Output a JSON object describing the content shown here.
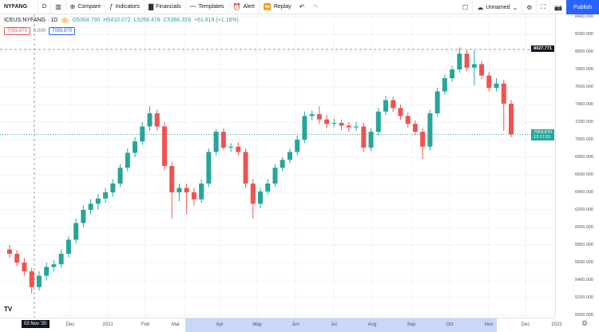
{
  "toolbar": {
    "symbol": "NYFANG",
    "interval": "D",
    "compare": "Compare",
    "indicators": "Indicators",
    "financials": "Financials",
    "templates": "Templates",
    "alert": "Alert",
    "replay": "Replay",
    "layout_name": "Unnamed",
    "publish": "Publish"
  },
  "legend": {
    "title": "ICEUS:NYFANG · 1D",
    "badge": "D",
    "open": "O5304.700",
    "high": "H5410.072",
    "low": "L5268.478",
    "close": "C5366.319",
    "change": "+61.619 (+1.16%)",
    "value_left": "7059.870",
    "value_mid": "0.000",
    "value_right": "7059.870"
  },
  "colors": {
    "up": "#26a69a",
    "down": "#ef5350",
    "accent": "#2962ff",
    "range": "#c9d7fb"
  },
  "price_axis": {
    "labels": [
      "8400.000",
      "8200.000",
      "8000.000",
      "7800.000",
      "7600.000",
      "7400.000",
      "7200.000",
      "7000.000",
      "6800.000",
      "6600.000",
      "6400.000",
      "6200.000",
      "6000.000",
      "5800.000",
      "5600.000",
      "5400.000",
      "5200.000",
      "5000.000"
    ],
    "high_label": "8027.771",
    "last_price": "7059.870",
    "countdown": "13:17:51"
  },
  "time_axis": {
    "crosshair_date": "03 Nov '20",
    "labels": [
      "Dec",
      "2021",
      "Feb",
      "Mar",
      "Apr",
      "May",
      "Jun",
      "Jul",
      "Aug",
      "Sep",
      "Oct",
      "Nov",
      "Dec",
      "2022"
    ]
  },
  "chart_data": {
    "type": "candlestick",
    "ylim": [
      5000,
      8400
    ],
    "high_line": 8027.771,
    "last": 7059.87,
    "ohlc": [
      [
        5750,
        5800,
        5650,
        5700
      ],
      [
        5700,
        5740,
        5560,
        5600
      ],
      [
        5600,
        5650,
        5450,
        5500
      ],
      [
        5500,
        5540,
        5250,
        5320
      ],
      [
        5320,
        5500,
        5280,
        5450
      ],
      [
        5450,
        5600,
        5400,
        5550
      ],
      [
        5550,
        5630,
        5500,
        5580
      ],
      [
        5580,
        5750,
        5540,
        5700
      ],
      [
        5700,
        5900,
        5660,
        5860
      ],
      [
        5860,
        6100,
        5820,
        6050
      ],
      [
        6050,
        6250,
        6000,
        6200
      ],
      [
        6200,
        6320,
        6150,
        6270
      ],
      [
        6270,
        6380,
        6200,
        6330
      ],
      [
        6330,
        6450,
        6280,
        6400
      ],
      [
        6400,
        6550,
        6350,
        6500
      ],
      [
        6500,
        6720,
        6460,
        6680
      ],
      [
        6680,
        6900,
        6640,
        6850
      ],
      [
        6850,
        7030,
        6800,
        6980
      ],
      [
        6980,
        7200,
        6940,
        7150
      ],
      [
        7150,
        7380,
        7100,
        7300
      ],
      [
        7300,
        7340,
        7100,
        7150
      ],
      [
        7150,
        7200,
        6650,
        6700
      ],
      [
        6700,
        6750,
        6100,
        6400
      ],
      [
        6400,
        6500,
        6300,
        6450
      ],
      [
        6450,
        6500,
        6150,
        6400
      ],
      [
        6400,
        6450,
        6250,
        6320
      ],
      [
        6320,
        6550,
        6280,
        6500
      ],
      [
        6500,
        6900,
        6460,
        6860
      ],
      [
        6860,
        7120,
        6820,
        7090
      ],
      [
        7090,
        7130,
        6880,
        6910
      ],
      [
        6910,
        6960,
        6860,
        6920
      ],
      [
        6920,
        6970,
        6820,
        6860
      ],
      [
        6860,
        6900,
        6450,
        6500
      ],
      [
        6500,
        6550,
        6100,
        6270
      ],
      [
        6270,
        6450,
        6220,
        6410
      ],
      [
        6410,
        6550,
        6370,
        6500
      ],
      [
        6500,
        6720,
        6460,
        6680
      ],
      [
        6680,
        6800,
        6640,
        6770
      ],
      [
        6770,
        6900,
        6730,
        6860
      ],
      [
        6860,
        7050,
        6820,
        7000
      ],
      [
        7000,
        7320,
        6960,
        7270
      ],
      [
        7270,
        7330,
        7220,
        7290
      ],
      [
        7290,
        7380,
        7180,
        7230
      ],
      [
        7230,
        7280,
        7130,
        7180
      ],
      [
        7180,
        7240,
        7140,
        7190
      ],
      [
        7190,
        7230,
        7110,
        7160
      ],
      [
        7160,
        7200,
        7090,
        7140
      ],
      [
        7140,
        7200,
        7100,
        7150
      ],
      [
        7150,
        7190,
        6860,
        6910
      ],
      [
        6910,
        7130,
        6870,
        7090
      ],
      [
        7090,
        7360,
        7050,
        7320
      ],
      [
        7320,
        7500,
        7280,
        7450
      ],
      [
        7450,
        7490,
        7320,
        7360
      ],
      [
        7360,
        7400,
        7230,
        7270
      ],
      [
        7270,
        7310,
        7140,
        7180
      ],
      [
        7180,
        7220,
        7050,
        7090
      ],
      [
        7090,
        7130,
        6780,
        6920
      ],
      [
        6920,
        7340,
        6880,
        7300
      ],
      [
        7300,
        7590,
        7260,
        7550
      ],
      [
        7550,
        7740,
        7510,
        7700
      ],
      [
        7700,
        7840,
        7660,
        7800
      ],
      [
        7800,
        8050,
        7760,
        7980
      ],
      [
        7980,
        8020,
        7780,
        7820
      ],
      [
        7820,
        8020,
        7620,
        7860
      ],
      [
        7860,
        7900,
        7690,
        7730
      ],
      [
        7730,
        7770,
        7550,
        7590
      ],
      [
        7590,
        7700,
        7550,
        7640
      ],
      [
        7640,
        7680,
        7100,
        7410
      ],
      [
        7410,
        7450,
        7030,
        7059.87
      ]
    ]
  }
}
